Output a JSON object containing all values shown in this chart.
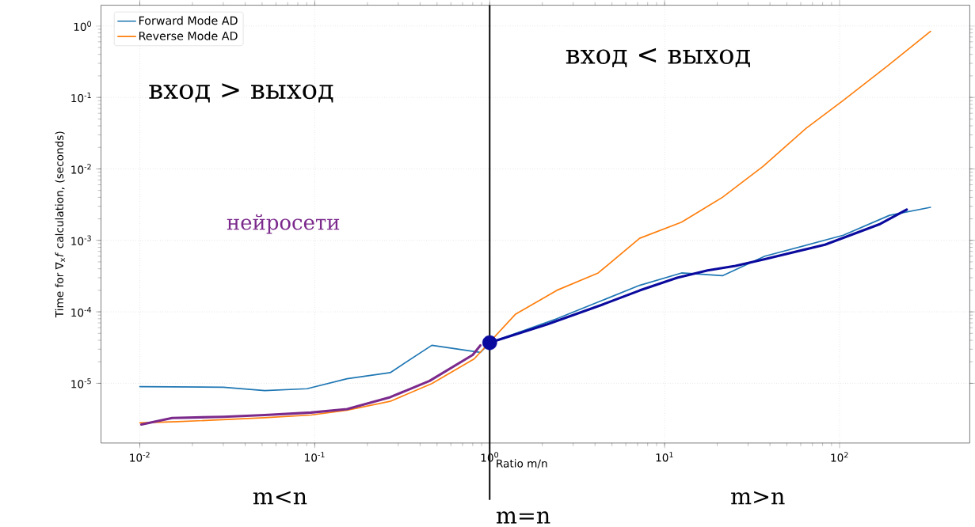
{
  "chart_data": {
    "type": "line",
    "xlabel": "Ratio m/n",
    "ylabel": "Time for ∇$_{x}$*f* calculation, (seconds)",
    "log": "xy",
    "grid": true,
    "legend": "top left",
    "marker": "none",
    "line_style": "solid",
    "xlim": [
      0.006,
      555
    ],
    "ylim": [
      1.46e-06,
      1.95
    ],
    "xticks": [
      {
        "value": 0.01,
        "label": "10$^{-2}$"
      },
      {
        "value": 0.1,
        "label": "10$^{-1}$"
      },
      {
        "value": 1,
        "label": "10$^{0}$"
      },
      {
        "value": 10,
        "label": "10$^{1}$"
      },
      {
        "value": 100,
        "label": "10$^{2}$"
      }
    ],
    "yticks": [
      {
        "value": 1e-05,
        "label": "10$^{-5}$"
      },
      {
        "value": 0.0001,
        "label": "10$^{-4}$"
      },
      {
        "value": 0.001,
        "label": "10$^{-3}$"
      },
      {
        "value": 0.01,
        "label": "10$^{-2}$"
      },
      {
        "value": 0.1,
        "label": "10$^{-1}$"
      },
      {
        "value": 1,
        "label": "10$^{0}$"
      }
    ],
    "series": [
      {
        "name": "Forward Mode AD",
        "color": "#1f77b4",
        "x": [
          0.01,
          0.03,
          0.0518,
          0.0903,
          0.153,
          0.27,
          0.467,
          0.885,
          1,
          2.42,
          7.2,
          12.5,
          21.4,
          37.4,
          105,
          193,
          331
        ],
        "values": [
          9e-06,
          8.8e-06,
          7.9e-06,
          8.4e-06,
          1.16e-05,
          1.41e-05,
          3.4e-05,
          2.7e-05,
          3.7e-05,
          8e-05,
          0.000235,
          0.00035,
          0.00032,
          0.0006,
          0.00118,
          0.00224,
          0.0029
        ]
      },
      {
        "name": "Reverse Mode AD",
        "color": "#ff7f0e",
        "x": [
          0.01,
          0.0164,
          0.0518,
          0.0951,
          0.153,
          0.27,
          0.467,
          0.816,
          1,
          1.4,
          2.42,
          4.17,
          7.2,
          12.5,
          21.4,
          36.6,
          64.4,
          105,
          186,
          331
        ],
        "values": [
          2.8e-06,
          2.9e-06,
          3.3e-06,
          3.6e-06,
          4.2e-06,
          5.6e-06,
          9.9e-06,
          2.2e-05,
          null,
          9.2e-05,
          0.0002,
          0.00035,
          0.00107,
          0.0018,
          0.004,
          0.0109,
          0.037,
          0.091,
          0.27,
          0.84
        ]
      },
      {
        "color": "#7b2a8c",
        "x": [
          0.0102,
          0.0153,
          0.03,
          0.0518,
          0.0951,
          0.153,
          0.27,
          0.453,
          0.8,
          0.885
        ],
        "values": [
          2.65e-06,
          3.27e-06,
          3.4e-06,
          3.6e-06,
          3.9e-06,
          4.35e-06,
          6.4e-06,
          1.08e-05,
          2.5e-05,
          3.4e-05
        ]
      },
      {
        "color": "#0a0a9e",
        "x": [
          1,
          2.14,
          4.44,
          7.2,
          11.8,
          17.6,
          25.4,
          36.6,
          82.5,
          171,
          242
        ],
        "values": [
          3.7e-05,
          6.7e-05,
          0.000127,
          0.000199,
          0.0003,
          0.00038,
          0.00044,
          0.00054,
          0.00087,
          0.0017,
          0.0027
        ]
      },
      {
        "type": "scatter",
        "marker": "circle",
        "color": "#0a0a9e",
        "x": [
          1
        ],
        "values": [
          3.7e-05
        ]
      }
    ],
    "ref_lines": [
      {
        "axis": "x",
        "value": 1,
        "color": "#000000"
      }
    ],
    "annotations": [
      "вход > выход",
      "вход < выход",
      "нейросети",
      "m<n",
      "m>n",
      "m=n"
    ]
  }
}
